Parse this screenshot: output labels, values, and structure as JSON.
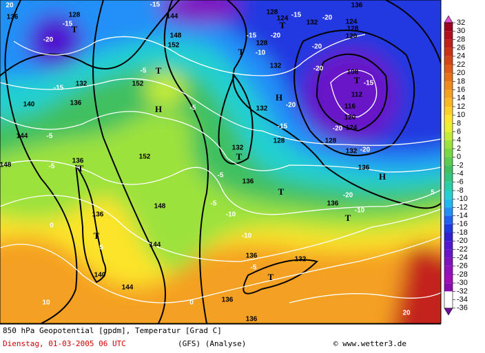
{
  "map": {
    "colorbar": {
      "ticks": [
        32,
        30,
        28,
        26,
        24,
        22,
        20,
        18,
        16,
        14,
        12,
        10,
        8,
        6,
        4,
        2,
        0,
        -2,
        -4,
        -6,
        -8,
        -10,
        -12,
        -14,
        -16,
        -18,
        -20,
        -22,
        -24,
        -26,
        -28,
        -30,
        -32,
        -34,
        -36
      ],
      "colors": [
        "#e84fd0",
        "#a0001e",
        "#b40f1e",
        "#c0201a",
        "#cc3218",
        "#d64518",
        "#e05a18",
        "#e87018",
        "#ef8a1c",
        "#f4a020",
        "#f8b824",
        "#fcd028",
        "#fce42c",
        "#e8f030",
        "#c4ec34",
        "#9ce23c",
        "#78d844",
        "#5ccc50",
        "#40c060",
        "#30c880",
        "#28d0a8",
        "#24d0d0",
        "#20b8f0",
        "#2090f8",
        "#2060f0",
        "#2038e0",
        "#3020d0",
        "#5018d0",
        "#6814c8",
        "#8012c0",
        "#9010c0",
        "#a00cb8",
        "#8a0cb0",
        "#70109c"
      ]
    },
    "labels": [
      "20",
      "136",
      "128",
      "T",
      "-15",
      "-20",
      "-15",
      "132",
      "140",
      "136",
      "144",
      "-5",
      "-5",
      "148",
      "136",
      "T",
      "0",
      "136",
      "T",
      "5",
      "140",
      "144",
      "10",
      "144",
      "-15",
      "148",
      "152",
      "T",
      "-5",
      "152",
      "H",
      "-5",
      "152",
      "148",
      "144",
      "-5",
      "-10",
      "-10",
      "-5",
      "132",
      "T",
      "136",
      "T",
      "-10",
      "-15",
      "128",
      "132",
      "H",
      "-20",
      "132",
      "-15",
      "128",
      "T",
      "-20",
      "136",
      "T",
      "-10",
      "H",
      "136",
      "132",
      "-20",
      "128",
      "-20",
      "-20",
      "-20",
      "136",
      "132",
      "T",
      "124",
      "128",
      "-15",
      "-20",
      "108",
      "T",
      "-15",
      "112",
      "116",
      "120",
      "124",
      "-20",
      "128",
      "124",
      "120",
      "132",
      "T",
      "-5",
      "136",
      "0",
      "136",
      "136",
      "20",
      "5"
    ],
    "footer": {
      "title": "850 hPa Geopotential [gpdm], Temperatur [Grad C]",
      "date": "Dienstag, 01-03-2005  06 UTC",
      "model": "(GFS)  (Analyse)",
      "credit": "© www.wetter3.de"
    }
  }
}
